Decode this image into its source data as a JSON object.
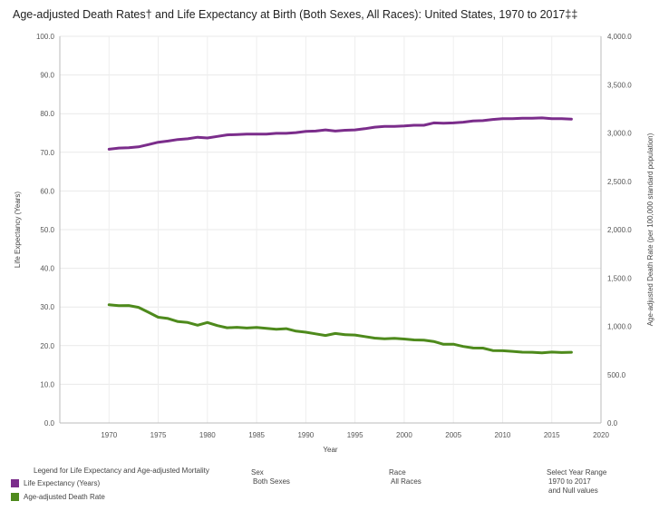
{
  "header": {
    "title": "Age-adjusted Death Rates† and Life Expectancy at Birth (Both Sexes, All Races): United States, 1970 to 2017‡‡"
  },
  "chart_data": {
    "type": "line",
    "title": "Age-adjusted Death Rates† and Life Expectancy at Birth (Both Sexes, All Races): United States, 1970 to 2017‡‡",
    "xlabel": "Year",
    "ylabel_left": "Life Expectancy (Years)",
    "ylabel_right": "Age-adjusted Death Rate (per 100,000 standard population)",
    "xlim": [
      1965,
      2020
    ],
    "ylim_left": [
      0,
      100
    ],
    "ylim_right": [
      0,
      4000
    ],
    "x_ticks": [
      "1970",
      "1975",
      "1980",
      "1985",
      "1990",
      "1995",
      "2000",
      "2005",
      "2010",
      "2015",
      "2020"
    ],
    "y_ticks_left": [
      "100.0",
      "90.0",
      "80.0",
      "70.0",
      "60.0",
      "50.0",
      "40.0",
      "30.0",
      "20.0",
      "10.0",
      "0.0"
    ],
    "y_ticks_right": [
      "4,000.0",
      "3,500.0",
      "3,000.0",
      "2,500.0",
      "2,000.0",
      "1,500.0",
      "1,000.0",
      "500.0",
      "0.0"
    ],
    "x": [
      1970,
      1971,
      1972,
      1973,
      1974,
      1975,
      1976,
      1977,
      1978,
      1979,
      1980,
      1981,
      1982,
      1983,
      1984,
      1985,
      1986,
      1987,
      1988,
      1989,
      1990,
      1991,
      1992,
      1993,
      1994,
      1995,
      1996,
      1997,
      1998,
      1999,
      2000,
      2001,
      2002,
      2003,
      2004,
      2005,
      2006,
      2007,
      2008,
      2009,
      2010,
      2011,
      2012,
      2013,
      2014,
      2015,
      2016,
      2017
    ],
    "grid": true,
    "series": [
      {
        "name": "Life Expectancy (Years)",
        "axis": "left",
        "color": "#7b2d8b",
        "values": [
          70.8,
          71.1,
          71.2,
          71.4,
          72.0,
          72.6,
          72.9,
          73.3,
          73.5,
          73.9,
          73.7,
          74.1,
          74.5,
          74.6,
          74.7,
          74.7,
          74.7,
          74.9,
          74.9,
          75.1,
          75.4,
          75.5,
          75.8,
          75.5,
          75.7,
          75.8,
          76.1,
          76.5,
          76.7,
          76.7,
          76.8,
          77.0,
          77.0,
          77.6,
          77.5,
          77.6,
          77.8,
          78.1,
          78.2,
          78.5,
          78.7,
          78.7,
          78.8,
          78.8,
          78.9,
          78.7,
          78.7,
          78.6
        ]
      },
      {
        "name": "Age-adjusted Death Rate",
        "axis": "right",
        "color": "#4e8a1c",
        "values": [
          1222.6,
          1213.1,
          1214.8,
          1196.4,
          1145.3,
          1094.3,
          1080.8,
          1048.8,
          1039.0,
          1010.8,
          1039.1,
          1007.1,
          985.0,
          990.0,
          982.5,
          988.1,
          978.6,
          970.0,
          975.7,
          950.5,
          938.7,
          922.3,
          905.6,
          926.1,
          913.5,
          909.8,
          894.1,
          878.1,
          870.6,
          875.6,
          869.0,
          858.8,
          855.9,
          843.5,
          813.7,
          815.0,
          791.8,
          775.3,
          774.9,
          749.6,
          747.0,
          741.3,
          732.8,
          731.9,
          724.6,
          733.1,
          728.8,
          731.9
        ]
      }
    ]
  },
  "legend": {
    "heading": "Legend for Life Expectancy and Age-adjusted Mortality",
    "items": [
      {
        "label": "Life Expectancy (Years)",
        "color": "#7b2d8b"
      },
      {
        "label": "Age-adjusted Death Rate",
        "color": "#4e8a1c"
      }
    ]
  },
  "filters": {
    "sex_label": "Sex",
    "sex_value": "Both Sexes",
    "race_label": "Race",
    "race_value": "All Races",
    "year_label": "Select Year Range",
    "year_value_1": "1970 to 2017",
    "year_value_2": "and Null values"
  }
}
